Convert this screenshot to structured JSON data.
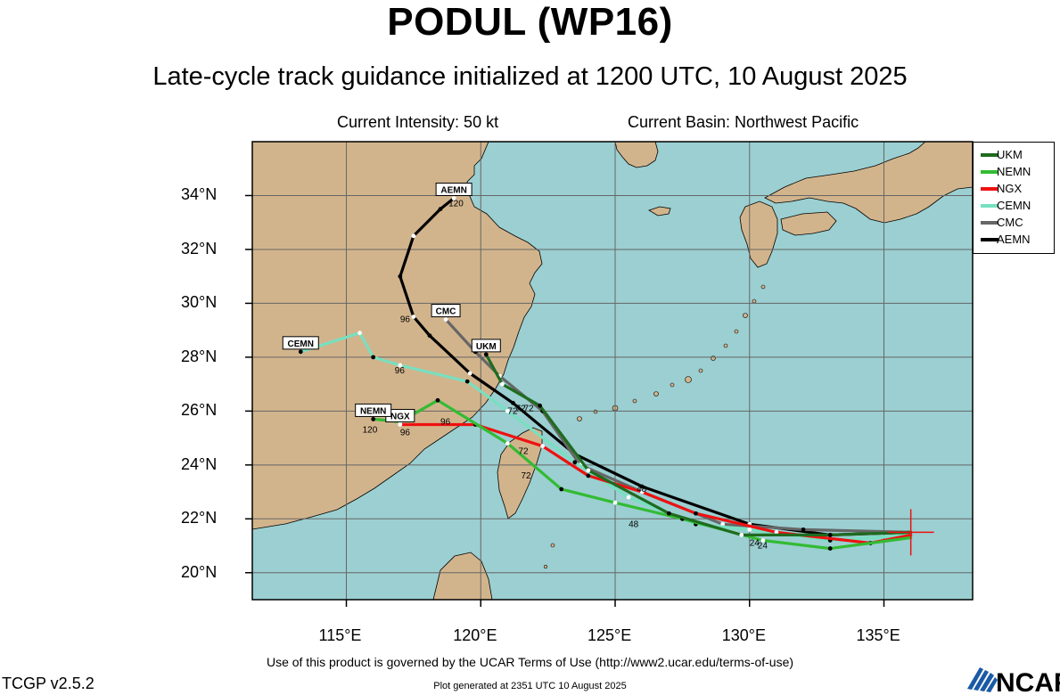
{
  "header": {
    "title": "PODUL (WP16)",
    "subtitle": "Late-cycle track guidance initialized at 1200 UTC, 10 August 2025",
    "intensity": "Current Intensity: 50 kt",
    "basin": "Current Basin: Northwest Pacific"
  },
  "map": {
    "lon_range": [
      111.5,
      138.3
    ],
    "lat_range": [
      19,
      36
    ],
    "lat_labels": [
      "20°N",
      "22°N",
      "24°N",
      "26°N",
      "28°N",
      "30°N",
      "32°N",
      "34°N"
    ],
    "lon_labels": [
      "115°E",
      "120°E",
      "125°E",
      "130°E",
      "135°E"
    ],
    "storm_position": {
      "lon": 136.0,
      "lat": 21.5
    },
    "colors": {
      "ocean": "#9bcfd1",
      "land": "#d2b48c",
      "border": "#000000",
      "grid": "#666666"
    }
  },
  "legend": [
    {
      "name": "UKM",
      "color": "#1f6b1f"
    },
    {
      "name": "NEMN",
      "color": "#33bb33"
    },
    {
      "name": "NGX",
      "color": "#ee1111"
    },
    {
      "name": "CEMN",
      "color": "#77e0c0"
    },
    {
      "name": "CMC",
      "color": "#666666"
    },
    {
      "name": "AEMN",
      "color": "#000000"
    }
  ],
  "tracks": [
    {
      "name": "UKM",
      "tag": "UKM",
      "points": [
        [
          136.0,
          21.5
        ],
        [
          133.0,
          21.4
        ],
        [
          129.7,
          21.4
        ],
        [
          127.0,
          22.2
        ],
        [
          124.0,
          23.8
        ],
        [
          122.2,
          26.2
        ],
        [
          120.8,
          27.0
        ],
        [
          120.2,
          28.1
        ]
      ],
      "hour_labels": [
        {
          "text": "24",
          "lon": 130.0,
          "lat": 21.0
        },
        {
          "text": "72",
          "lon": 121.3,
          "lat": 26.0
        }
      ]
    },
    {
      "name": "NEMN",
      "tag": "NEMN",
      "points": [
        [
          136.0,
          21.3
        ],
        [
          133.0,
          20.9
        ],
        [
          130.5,
          21.2
        ],
        [
          127.5,
          22.0
        ],
        [
          125.0,
          22.6
        ],
        [
          123.0,
          23.1
        ],
        [
          121.0,
          24.8
        ],
        [
          118.4,
          26.4
        ],
        [
          117.0,
          25.6
        ],
        [
          116.0,
          25.7
        ]
      ],
      "hour_labels": [
        {
          "text": "24",
          "lon": 130.3,
          "lat": 20.9
        },
        {
          "text": "48",
          "lon": 125.5,
          "lat": 21.7
        },
        {
          "text": "72",
          "lon": 121.5,
          "lat": 23.5
        },
        {
          "text": "120",
          "lon": 115.6,
          "lat": 25.2
        }
      ]
    },
    {
      "name": "NGX",
      "tag": "NGX",
      "points": [
        [
          136.0,
          21.4
        ],
        [
          134.5,
          21.1
        ],
        [
          131.0,
          21.5
        ],
        [
          128.0,
          22.2
        ],
        [
          126.0,
          23.0
        ],
        [
          124.0,
          23.6
        ],
        [
          122.3,
          24.7
        ],
        [
          119.8,
          25.5
        ],
        [
          117.0,
          25.5
        ]
      ],
      "hour_labels": [
        {
          "text": "48",
          "lon": 125.8,
          "lat": 23.0
        },
        {
          "text": "72",
          "lon": 121.4,
          "lat": 24.4
        },
        {
          "text": "96",
          "lon": 118.5,
          "lat": 25.5
        },
        {
          "text": "96",
          "lon": 117.0,
          "lat": 25.1
        }
      ]
    },
    {
      "name": "CEMN",
      "tag": "CEMN",
      "points": [
        [
          136.0,
          21.4
        ],
        [
          133.0,
          21.2
        ],
        [
          130.0,
          21.6
        ],
        [
          128.0,
          21.8
        ],
        [
          125.5,
          22.8
        ],
        [
          123.5,
          24.1
        ],
        [
          121.0,
          26.0
        ],
        [
          119.5,
          27.1
        ],
        [
          117.0,
          27.7
        ],
        [
          116.0,
          28.0
        ],
        [
          115.5,
          28.9
        ],
        [
          113.3,
          28.2
        ]
      ],
      "hour_labels": [
        {
          "text": "72",
          "lon": 121.0,
          "lat": 25.9
        },
        {
          "text": "96",
          "lon": 116.8,
          "lat": 27.4
        }
      ]
    },
    {
      "name": "CMC",
      "tag": "CMC",
      "points": [
        [
          136.0,
          21.5
        ],
        [
          132.0,
          21.6
        ],
        [
          129.0,
          21.8
        ],
        [
          126.0,
          23.0
        ],
        [
          123.7,
          24.0
        ],
        [
          122.3,
          26.0
        ],
        [
          120.7,
          27.3
        ],
        [
          119.8,
          28.2
        ],
        [
          118.7,
          29.4
        ]
      ],
      "hour_labels": [
        {
          "text": "72",
          "lon": 121.6,
          "lat": 26.0
        }
      ]
    },
    {
      "name": "AEMN",
      "tag": "AEMN",
      "points": [
        [
          136.0,
          21.5
        ],
        [
          133.0,
          21.4
        ],
        [
          130.0,
          21.8
        ],
        [
          126.0,
          23.2
        ],
        [
          123.5,
          24.4
        ],
        [
          121.2,
          26.3
        ],
        [
          119.6,
          27.4
        ],
        [
          118.1,
          28.8
        ],
        [
          117.5,
          29.5
        ],
        [
          117.0,
          31.0
        ],
        [
          117.5,
          32.5
        ],
        [
          118.5,
          33.5
        ],
        [
          119.0,
          33.9
        ]
      ],
      "hour_labels": [
        {
          "text": "96",
          "lon": 117.0,
          "lat": 29.3
        },
        {
          "text": "120",
          "lon": 118.8,
          "lat": 33.6
        }
      ]
    }
  ],
  "footer": {
    "terms": "Use of this product is governed by the UCAR Terms of Use (http://www2.ucar.edu/terms-of-use)",
    "version": "TCGP v2.5.2",
    "generated": "Plot generated at 2351 UTC   10 August 2025",
    "logo_text": "NCAR"
  }
}
